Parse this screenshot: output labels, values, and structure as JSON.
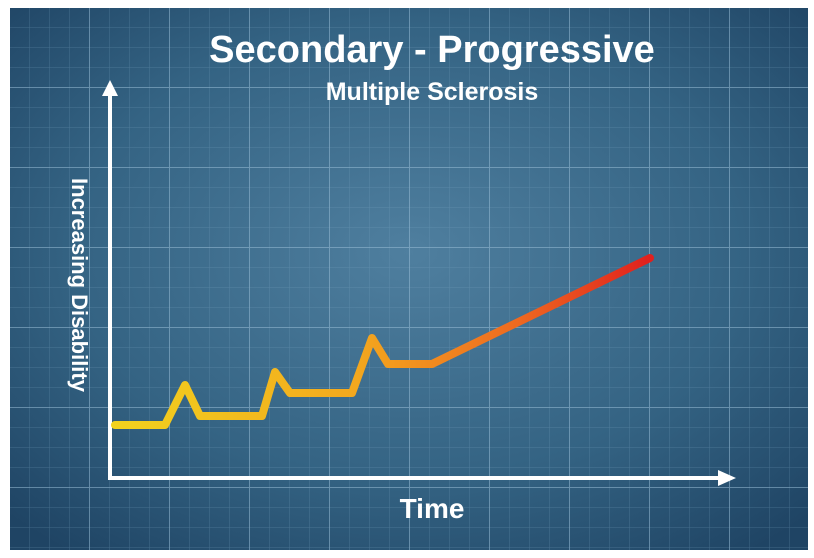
{
  "title": "Secondary - Progressive",
  "subtitle": "Multiple Sclerosis",
  "y_axis_label": "Increasing Disability",
  "x_axis_label": "Time"
}
